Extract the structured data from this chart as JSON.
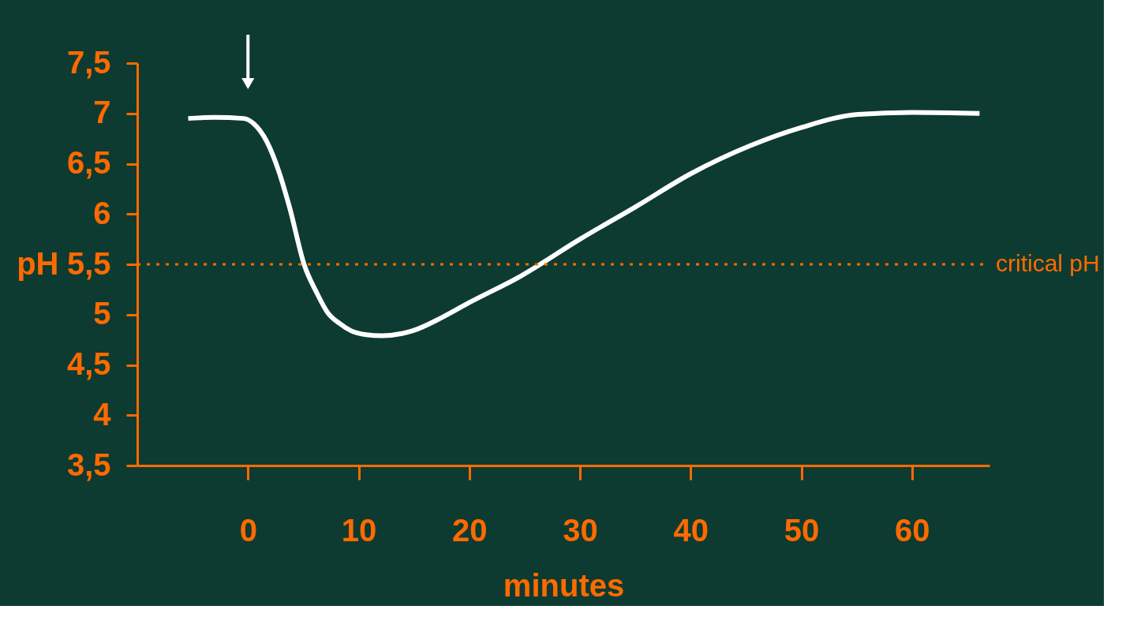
{
  "chart_data": {
    "type": "line",
    "xlabel": "minutes",
    "ylabel": "pH",
    "x": [
      -5.4,
      -3,
      -0.4,
      0.5,
      1.7,
      2.8,
      3.75,
      5.1,
      6.2,
      7.2,
      8.3,
      9.3,
      10.7,
      12.1,
      14.9,
      17.5,
      20,
      24.6,
      30,
      35,
      40,
      45.4,
      50,
      55.1,
      60,
      66.1
    ],
    "series": [
      {
        "color": "#ffffff",
        "values": [
          6.95,
          6.96,
          6.95,
          6.9,
          6.72,
          6.42,
          6.07,
          5.49,
          5.22,
          5.02,
          4.91,
          4.84,
          4.8,
          4.79,
          4.84,
          4.97,
          5.12,
          5.38,
          5.75,
          6.07,
          6.4,
          6.68,
          6.86,
          6.99,
          7.01,
          7.0
        ]
      }
    ],
    "xlim": [
      -10,
      67
    ],
    "xticks": [
      0,
      10,
      20,
      30,
      40,
      50,
      60
    ],
    "ylim": [
      3.5,
      7.5
    ],
    "yticks": [
      {
        "value": 3.5,
        "label": "3,5"
      },
      4,
      {
        "value": 4.5,
        "label": "4,5"
      },
      5,
      {
        "value": 5.5,
        "label": "5,5"
      },
      6,
      {
        "value": 6.5,
        "label": "6,5"
      },
      7,
      {
        "value": 7.5,
        "label": "7,5"
      }
    ],
    "ref_lines": [
      {
        "axis": "y",
        "value": 5.5,
        "label": "critical pH",
        "color": "#ff6a00",
        "line_style": "dotted"
      }
    ],
    "grid": false,
    "marker": "none",
    "line_style": "solid"
  }
}
